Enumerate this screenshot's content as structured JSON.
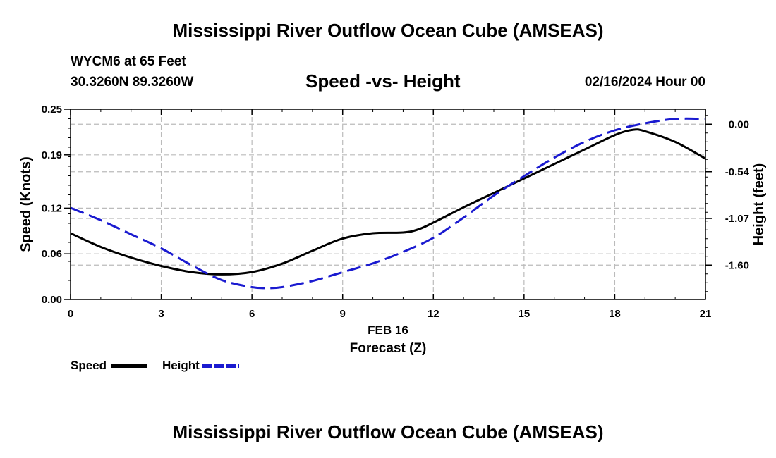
{
  "header": {
    "title": "Mississippi River Outflow Ocean Cube (AMSEAS)",
    "station": "WYCM6 at 65 Feet",
    "coords": "30.3260N  89.3260W",
    "datetime": "02/16/2024 Hour 00"
  },
  "footer": {
    "title": "Mississippi River Outflow Ocean Cube (AMSEAS)"
  },
  "legend": {
    "speed_label": "Speed",
    "height_label": "Height"
  },
  "colors": {
    "speed": "#000000",
    "height": "#1a1ad0",
    "grid": "#bbbbbb"
  },
  "chart_data": {
    "type": "line",
    "title": "Speed -vs- Height",
    "xlabel": "Forecast (Z)",
    "xlabel_date": "FEB 16",
    "ylabel_left": "Speed (Knots)",
    "ylabel_right": "Height (feet)",
    "xlim": [
      0,
      21
    ],
    "x_ticks": [
      0,
      3,
      6,
      9,
      12,
      15,
      18,
      21
    ],
    "ylim_left": [
      0,
      0.25
    ],
    "y_ticks_left": [
      {
        "value": 0.0,
        "label": "0.00"
      },
      {
        "value": 0.06,
        "label": "0.06"
      },
      {
        "value": 0.12,
        "label": "0.12"
      },
      {
        "value": 0.19,
        "label": "0.19"
      },
      {
        "value": 0.25,
        "label": "0.25"
      }
    ],
    "ylim_right": [
      -1.99,
      0.17
    ],
    "y_ticks_right": [
      {
        "value": 0.0,
        "label": "0.00"
      },
      {
        "value": -0.54,
        "label": "-0.54"
      },
      {
        "value": -1.07,
        "label": "-1.07"
      },
      {
        "value": -1.6,
        "label": "-1.60"
      }
    ],
    "grid": true,
    "series": [
      {
        "name": "Speed",
        "axis": "left",
        "style": "solid",
        "x": [
          0,
          1,
          2,
          3,
          4,
          5,
          6,
          7,
          8,
          9,
          10,
          11,
          11.5,
          12,
          13,
          14,
          15,
          16,
          17,
          18,
          18.6,
          19,
          20,
          21
        ],
        "y": [
          0.087,
          0.069,
          0.055,
          0.044,
          0.036,
          0.033,
          0.036,
          0.047,
          0.064,
          0.08,
          0.087,
          0.088,
          0.092,
          0.101,
          0.121,
          0.14,
          0.159,
          0.178,
          0.197,
          0.216,
          0.223,
          0.221,
          0.207,
          0.185
        ]
      },
      {
        "name": "Height",
        "axis": "right",
        "style": "dashed",
        "x": [
          0,
          1,
          2,
          3,
          4,
          5,
          6,
          6.5,
          7,
          8,
          9,
          10,
          11,
          12,
          13,
          14,
          15,
          16,
          17,
          18,
          19,
          20,
          21
        ],
        "y": [
          -0.95,
          -1.09,
          -1.25,
          -1.41,
          -1.6,
          -1.77,
          -1.85,
          -1.86,
          -1.85,
          -1.78,
          -1.68,
          -1.58,
          -1.45,
          -1.29,
          -1.06,
          -0.81,
          -0.59,
          -0.38,
          -0.2,
          -0.07,
          0.01,
          0.06,
          0.06
        ]
      }
    ]
  }
}
